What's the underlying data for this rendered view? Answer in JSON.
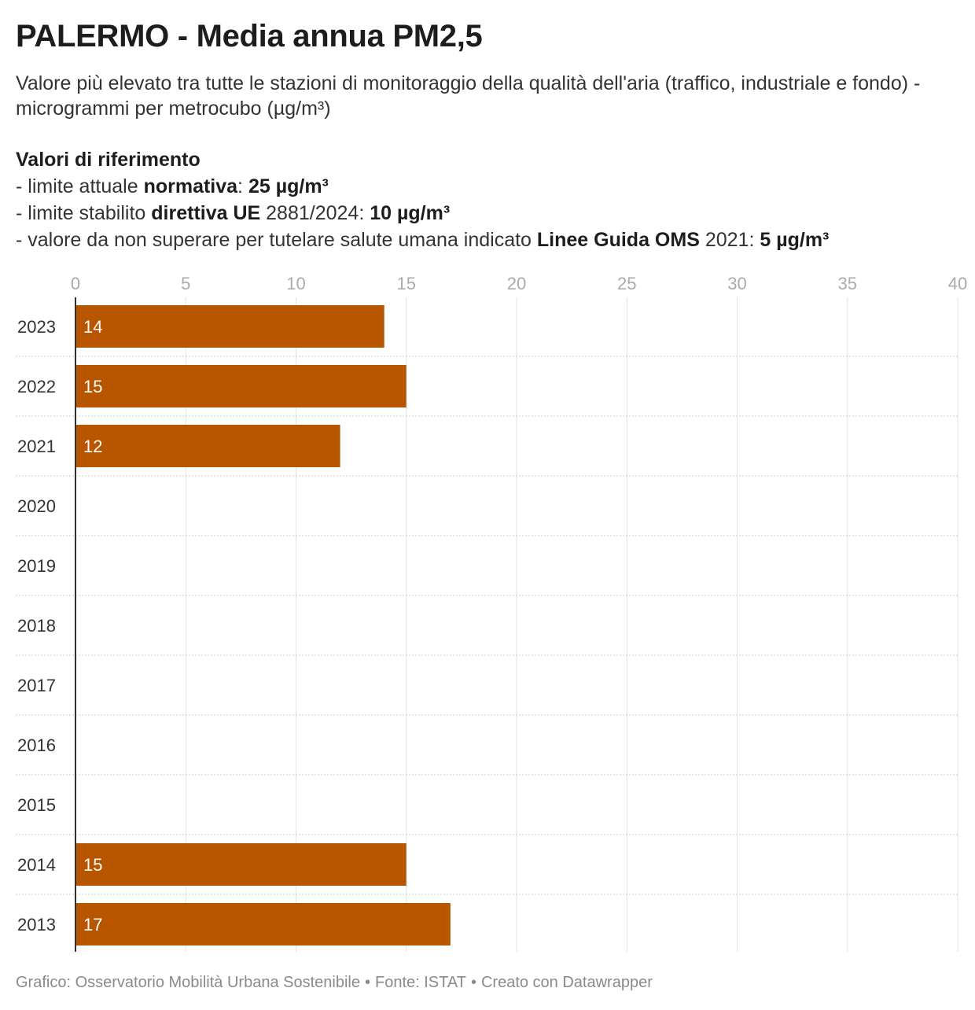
{
  "header": {
    "title": "PALERMO - Media annua PM2,5",
    "subtitle": "Valore più elevato tra tutte le stazioni di monitoraggio della qualità dell'aria (traffico, industriale e fondo) - microgrammi per metrocubo (µg/m³)",
    "reference": {
      "heading": "Valori di riferimento",
      "line1": {
        "pre": "- limite attuale ",
        "bold1": "normativa",
        "mid": ": ",
        "bold2": "25 µg/m³"
      },
      "line2": {
        "pre": "- limite stabilito ",
        "bold1": "direttiva UE",
        "mid": " 2881/2024: ",
        "bold2": "10 µg/m³"
      },
      "line3": {
        "pre": "- valore da non superare per tutelare salute umana indicato ",
        "bold1": "Linee Guida OMS",
        "mid": " 2021: ",
        "bold2": "5 µg/m³"
      }
    }
  },
  "chart_data": {
    "type": "bar",
    "orientation": "horizontal",
    "categories": [
      "2023",
      "2022",
      "2021",
      "2020",
      "2019",
      "2018",
      "2017",
      "2016",
      "2015",
      "2014",
      "2013"
    ],
    "values": [
      14,
      15,
      12,
      null,
      null,
      null,
      null,
      null,
      null,
      15,
      17
    ],
    "value_labels": [
      "14",
      "15",
      "12",
      "",
      "",
      "",
      "",
      "",
      "",
      "15",
      "17"
    ],
    "xlim": [
      0,
      40
    ],
    "x_ticks": [
      0,
      5,
      10,
      15,
      20,
      25,
      30,
      35,
      40
    ],
    "x_axis_position": "top",
    "grid": true,
    "legend": "none",
    "colors": {
      "bar": "#b85600",
      "bar_label": "#ffffff",
      "grid": "#e2e2e2",
      "row_separator": "#cccccc",
      "axis": "#333333",
      "tick_label": "#aaaaaa",
      "category_label": "#333333"
    }
  },
  "footer": {
    "credit": "Grafico: Osservatorio Mobilità Urbana Sostenibile",
    "source": "Fonte: ISTAT",
    "tool": "Creato con Datawrapper",
    "separator": "•"
  }
}
